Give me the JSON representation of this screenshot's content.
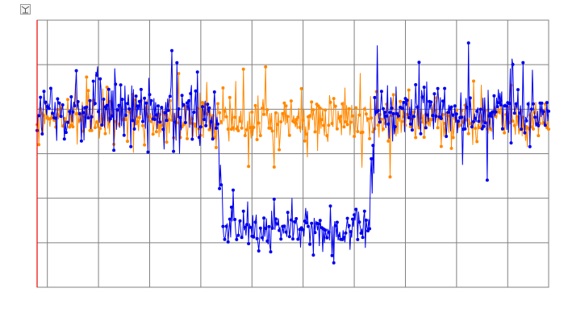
{
  "chart_data": {
    "type": "line",
    "title": "",
    "xlabel": "",
    "ylabel": "",
    "x_range": [
      0,
      600
    ],
    "y_range": [
      0,
      6
    ],
    "grid": true,
    "x_gridlines": [
      12,
      72,
      132,
      192,
      252,
      312,
      372,
      432,
      492,
      552
    ],
    "y_gridlines": [
      1,
      2,
      3,
      4,
      5
    ],
    "markers": true,
    "series": [
      {
        "color": "#0000ee",
        "segments": [
          {
            "x_start": 0,
            "x_end": 213,
            "mean": 3.95,
            "spread": 0.42
          },
          {
            "x_start": 213,
            "x_end": 217,
            "mean": 2.6,
            "spread": 0.6
          },
          {
            "x_start": 217,
            "x_end": 390,
            "mean": 1.3,
            "spread": 0.28
          },
          {
            "x_start": 390,
            "x_end": 395,
            "mean": 2.6,
            "spread": 0.6
          },
          {
            "x_start": 395,
            "x_end": 600,
            "mean": 3.95,
            "spread": 0.4
          }
        ],
        "min": 0.55,
        "max": 5.55
      },
      {
        "color": "#ff8800",
        "segments": [
          {
            "x_start": 0,
            "x_end": 600,
            "mean": 3.75,
            "spread": 0.32
          }
        ],
        "min": 2.05,
        "max": 4.95
      }
    ],
    "reference_line": {
      "x": 0,
      "color": "#ee0000"
    }
  },
  "corner_icon": "chart-toolbar-icon"
}
